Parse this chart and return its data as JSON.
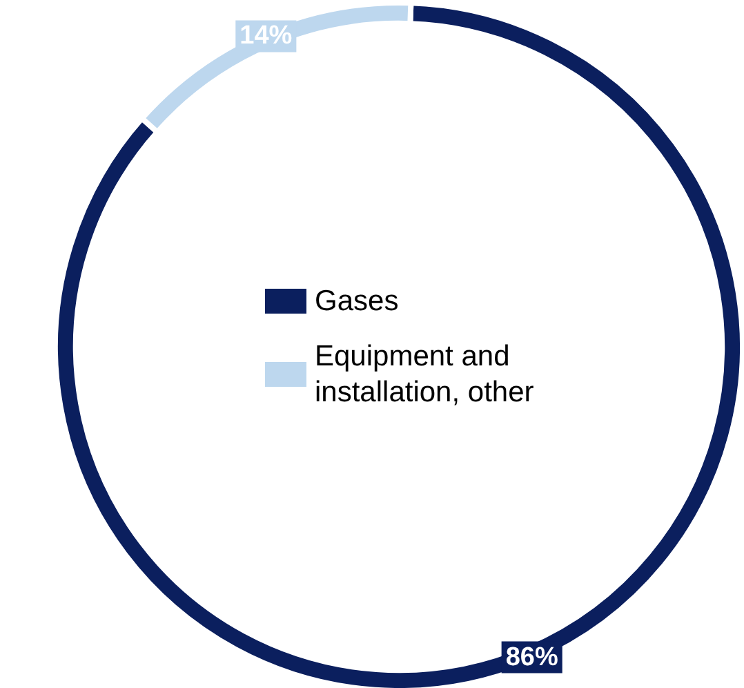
{
  "chart_data": {
    "type": "donut",
    "categories": [
      "Gases",
      "Equipment and installation, other"
    ],
    "values": [
      86,
      14
    ],
    "value_labels": [
      "86%",
      "14%"
    ],
    "colors": [
      "#0b1f5e",
      "#bdd7ee"
    ],
    "legend": "center"
  }
}
